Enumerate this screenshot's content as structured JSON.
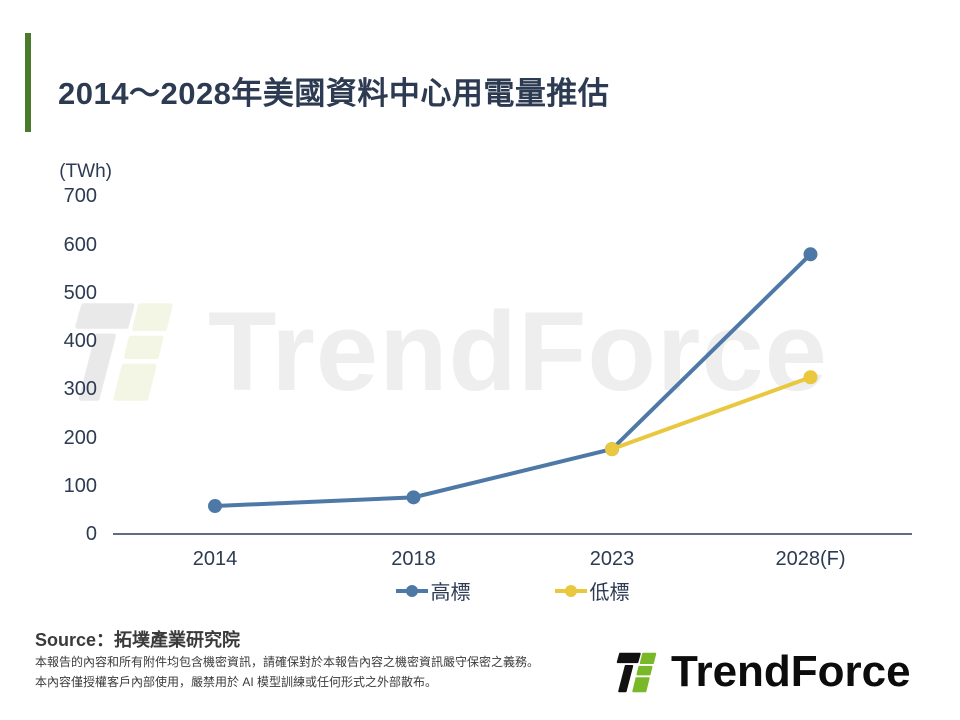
{
  "title": "2014～2028年美國資料中心用電量推估",
  "chart_data": {
    "type": "line",
    "title": "2014～2028年美國資料中心用電量推估",
    "xlabel": "",
    "ylabel": "(TWh)",
    "categories": [
      "2014",
      "2018",
      "2023",
      "2028(F)"
    ],
    "series": [
      {
        "name": "高標",
        "color": "#4e79a7",
        "values": [
          58,
          76,
          176,
          580
        ]
      },
      {
        "name": "低標",
        "color": "#e9c83f",
        "values": [
          null,
          null,
          176,
          325
        ]
      }
    ],
    "ylim": [
      0,
      700
    ],
    "yticks": [
      700,
      600,
      500,
      400,
      300,
      200,
      100,
      0
    ],
    "grid": false,
    "legend_position": "bottom"
  },
  "watermark": {
    "text": "TrendForce"
  },
  "footer": {
    "source": "Source：拓墣產業研究院",
    "disclaimer_line1": "本報告的內容和所有附件均包含機密資訊，請確保對於本報告內容之機密資訊嚴守保密之義務。",
    "disclaimer_line2": "本內容僅授權客戶內部使用，嚴禁用於 AI 模型訓練或任何形式之外部散布。"
  },
  "logo": {
    "text": "TrendForce"
  },
  "colors": {
    "accent_green": "#4a7a2c",
    "title_text": "#2d3b52",
    "axis_text": "#2d3b52",
    "axis_line": "#2f3b52",
    "high_series": "#4e79a7",
    "low_series": "#e9c83f",
    "logo_black": "#111111",
    "logo_green": "#79b829",
    "watermark_gray": "#eeeeee",
    "watermark_icon_gray": "#e9e9e9",
    "watermark_icon_green": "#f3f6e4"
  }
}
